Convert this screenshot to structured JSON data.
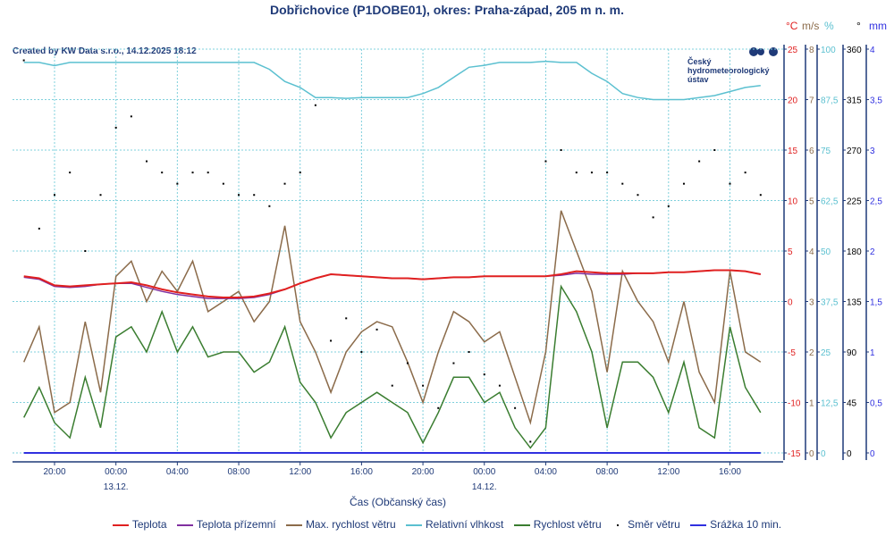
{
  "title": "Dobřichovice (P1DOBE01), okres: Praha-západ, 205 m n. m.",
  "credit": "Created by KW Data s.r.o., 14.12.2025 18:12",
  "logo": {
    "lines": [
      "Český",
      "hydrometeorologický",
      "ústav"
    ]
  },
  "chart_data": {
    "type": "line",
    "title": "Dobřichovice (P1DOBE01), okres: Praha-západ, 205 m n. m.",
    "xlabel": "Čas (Občanský čas)",
    "x_start": "12.12. 18:00",
    "x_end": "14.12. 18:00",
    "x_ticks": [
      {
        "label": "20:00",
        "hour": 2
      },
      {
        "label": "00:00",
        "hour": 6,
        "date": "13.12."
      },
      {
        "label": "04:00",
        "hour": 10
      },
      {
        "label": "08:00",
        "hour": 14
      },
      {
        "label": "12:00",
        "hour": 18
      },
      {
        "label": "16:00",
        "hour": 22
      },
      {
        "label": "20:00",
        "hour": 26
      },
      {
        "label": "00:00",
        "hour": 30,
        "date": "14.12."
      },
      {
        "label": "04:00",
        "hour": 34
      },
      {
        "label": "08:00",
        "hour": 38
      },
      {
        "label": "12:00",
        "hour": 42
      },
      {
        "label": "16:00",
        "hour": 46
      }
    ],
    "axes": [
      {
        "unit": "°C",
        "color": "#e02020",
        "range": [
          -15,
          25
        ],
        "ticks": [
          "-15",
          "-10",
          "-5",
          "0",
          "5",
          "10",
          "15",
          "20",
          "25"
        ]
      },
      {
        "unit": "m/s",
        "color": "#8b6b4a",
        "range": [
          0,
          8
        ],
        "ticks": [
          "0",
          "1",
          "2",
          "3",
          "4",
          "5",
          "6",
          "7",
          "8"
        ]
      },
      {
        "unit": "%",
        "color": "#5bc0d0",
        "range": [
          0,
          100
        ],
        "ticks": [
          "0",
          "12,5",
          "25",
          "37,5",
          "50",
          "62,5",
          "75",
          "87,5",
          "100"
        ]
      },
      {
        "unit": "°",
        "color": "#000000",
        "range": [
          0,
          360
        ],
        "ticks": [
          "0",
          "45",
          "90",
          "135",
          "180",
          "225",
          "270",
          "315",
          "360"
        ]
      },
      {
        "unit": "mm",
        "color": "#3030e0",
        "range": [
          0,
          4
        ],
        "ticks": [
          "0",
          "0,5",
          "1",
          "1,5",
          "2",
          "2,5",
          "3",
          "3,5",
          "4"
        ]
      }
    ],
    "series": [
      {
        "name": "Teplota",
        "axis": 0,
        "color": "#e02020",
        "kind": "line",
        "values": [
          2.5,
          2.3,
          1.6,
          1.5,
          1.6,
          1.7,
          1.8,
          1.9,
          1.6,
          1.2,
          0.9,
          0.7,
          0.5,
          0.4,
          0.4,
          0.5,
          0.8,
          1.2,
          1.8,
          2.3,
          2.7,
          2.6,
          2.5,
          2.4,
          2.3,
          2.3,
          2.2,
          2.3,
          2.4,
          2.4,
          2.5,
          2.5,
          2.5,
          2.5,
          2.5,
          2.7,
          3.0,
          2.9,
          2.8,
          2.8,
          2.8,
          2.8,
          2.9,
          2.9,
          3.0,
          3.1,
          3.1,
          3.0,
          2.7
        ]
      },
      {
        "name": "Teplota přízemní",
        "axis": 0,
        "color": "#8030a0",
        "kind": "line",
        "values": [
          2.4,
          2.2,
          1.5,
          1.4,
          1.5,
          1.7,
          1.8,
          1.8,
          1.4,
          1.0,
          0.7,
          0.5,
          0.3,
          0.3,
          0.3,
          0.4,
          0.7,
          1.2,
          1.8,
          2.3,
          2.7,
          2.6,
          2.5,
          2.4,
          2.3,
          2.3,
          2.2,
          2.3,
          2.4,
          2.4,
          2.5,
          2.5,
          2.5,
          2.5,
          2.5,
          2.6,
          2.8,
          2.7,
          2.7,
          2.7,
          2.8,
          2.8,
          2.9,
          2.9,
          3.0,
          3.1,
          3.1,
          3.0,
          2.7
        ]
      },
      {
        "name": "Max. rychlost větru",
        "axis": 1,
        "color": "#8b6b4a",
        "kind": "line",
        "values": [
          1.8,
          2.5,
          0.8,
          1.0,
          2.6,
          1.2,
          3.5,
          3.8,
          3.0,
          3.6,
          3.2,
          3.8,
          2.8,
          3.0,
          3.2,
          2.6,
          3.0,
          4.5,
          2.6,
          2.0,
          1.2,
          2.0,
          2.4,
          2.6,
          2.5,
          1.8,
          1.0,
          2.0,
          2.8,
          2.6,
          2.2,
          2.4,
          1.5,
          0.6,
          2.0,
          4.8,
          4.0,
          3.2,
          1.6,
          3.6,
          3.0,
          2.6,
          1.8,
          3.0,
          1.6,
          1.0,
          3.6,
          2.0,
          1.8
        ]
      },
      {
        "name": "Relativní vlhkost",
        "axis": 2,
        "color": "#5bc0d0",
        "kind": "line",
        "values": [
          96.7,
          96.7,
          95.9,
          96.7,
          96.7,
          96.7,
          96.7,
          96.7,
          96.7,
          96.7,
          96.7,
          96.7,
          96.7,
          96.7,
          96.7,
          96.7,
          95,
          92,
          90.5,
          88,
          88,
          87.8,
          88,
          88,
          88,
          88,
          89,
          90.5,
          93,
          95.5,
          96,
          96.7,
          96.7,
          96.7,
          97,
          96.7,
          96.7,
          94,
          92,
          89,
          88,
          87.5,
          87.5,
          87.5,
          88,
          88.5,
          89.5,
          90.5,
          91
        ]
      },
      {
        "name": "Rychlost větru",
        "axis": 1,
        "color": "#3a7d30",
        "kind": "line",
        "values": [
          0.7,
          1.3,
          0.6,
          0.3,
          1.5,
          0.5,
          2.3,
          2.5,
          2.0,
          2.8,
          2.0,
          2.5,
          1.9,
          2.0,
          2.0,
          1.6,
          1.8,
          2.5,
          1.4,
          1.0,
          0.3,
          0.8,
          1.0,
          1.2,
          1.0,
          0.8,
          0.2,
          0.8,
          1.5,
          1.5,
          1.0,
          1.2,
          0.5,
          0.1,
          0.5,
          3.3,
          2.8,
          2.0,
          0.5,
          1.8,
          1.8,
          1.5,
          0.8,
          1.8,
          0.5,
          0.3,
          2.5,
          1.3,
          0.8
        ]
      },
      {
        "name": "Směr větru",
        "axis": 3,
        "color": "#000000",
        "kind": "dots",
        "values": [
          350,
          200,
          230,
          250,
          180,
          230,
          290,
          300,
          260,
          250,
          240,
          250,
          250,
          240,
          230,
          230,
          220,
          240,
          250,
          310,
          100,
          120,
          90,
          110,
          60,
          80,
          60,
          40,
          80,
          90,
          70,
          60,
          40,
          10,
          260,
          270,
          250,
          250,
          250,
          240,
          230,
          210,
          220,
          240,
          260,
          270,
          240,
          250,
          230
        ]
      },
      {
        "name": "Srážka 10 min.",
        "axis": 4,
        "color": "#3030e0",
        "kind": "line",
        "values": [
          0,
          0,
          0,
          0,
          0,
          0,
          0,
          0,
          0,
          0,
          0,
          0,
          0,
          0,
          0,
          0,
          0,
          0,
          0,
          0,
          0,
          0,
          0,
          0,
          0,
          0,
          0,
          0,
          0,
          0,
          0,
          0,
          0,
          0,
          0,
          0,
          0,
          0,
          0,
          0,
          0,
          0,
          0,
          0,
          0,
          0,
          0,
          0,
          0
        ]
      }
    ],
    "grid": true,
    "legend": "bottom"
  }
}
